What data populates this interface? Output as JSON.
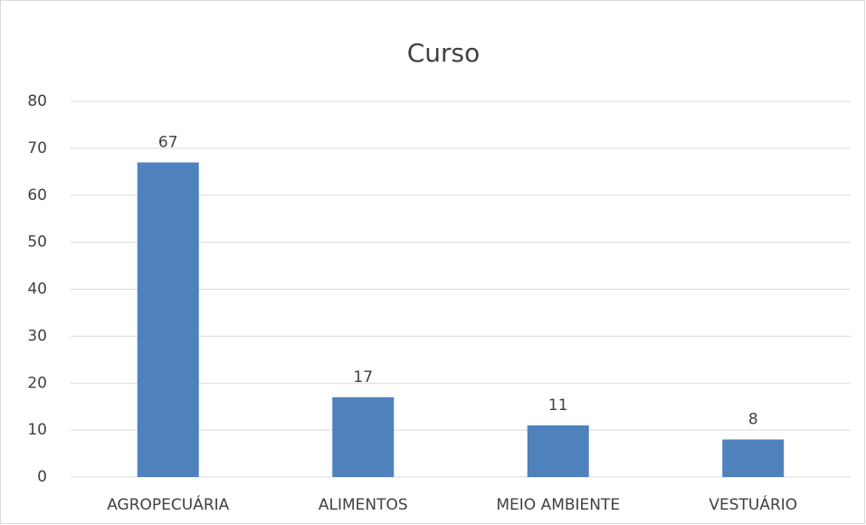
{
  "chart_data": {
    "type": "bar",
    "title": "Curso",
    "categories": [
      "AGROPECUÁRIA",
      "ALIMENTOS",
      "MEIO AMBIENTE",
      "VESTUÁRIO"
    ],
    "values": [
      67,
      17,
      11,
      8
    ],
    "color": "#4f81bd",
    "ylim": [
      0,
      80
    ],
    "yticks": [
      0,
      10,
      20,
      30,
      40,
      50,
      60,
      70,
      80
    ],
    "grid": true
  }
}
